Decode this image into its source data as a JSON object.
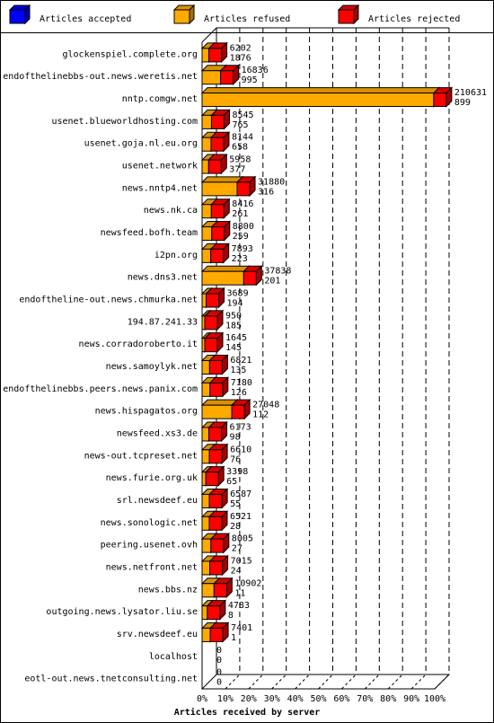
{
  "colors": {
    "accepted": "#0000ff",
    "refused": "#ffaa00",
    "rejected": "#ff0000",
    "background": "#ffffff",
    "frame": "#000000"
  },
  "chart_data": {
    "type": "bar",
    "orientation": "horizontal",
    "stacked": true,
    "xlabel": "Articles received by server",
    "xlim": [
      0,
      100
    ],
    "x_ticks": [
      "0%",
      "10%",
      "20%",
      "30%",
      "40%",
      "50%",
      "60%",
      "70%",
      "80%",
      "90%",
      "100%"
    ],
    "grid": true,
    "legend": "top",
    "series": [
      {
        "name": "Articles accepted",
        "color": "#0000ff"
      },
      {
        "name": "Articles refused",
        "color": "#ffaa00"
      },
      {
        "name": "Articles rejected",
        "color": "#ff0000"
      }
    ],
    "categories": [
      "glockenspiel.complete.org",
      "endofthelinebbs-out.news.weretis.net",
      "nntp.comgw.net",
      "usenet.blueworldhosting.com",
      "usenet.goja.nl.eu.org",
      "usenet.network",
      "news.nntp4.net",
      "news.nk.ca",
      "newsfeed.bofh.team",
      "i2pn.org",
      "news.dns3.net",
      "endoftheline-out.news.chmurka.net",
      "194.87.241.33",
      "news.corradoroberto.it",
      "news.samoylyk.net",
      "endofthelinebbs.peers.news.panix.com",
      "news.hispagatos.org",
      "newsfeed.xs3.de",
      "news-out.tcpreset.net",
      "news.furie.org.uk",
      "srl.newsdeef.eu",
      "news.sonologic.net",
      "peering.usenet.ovh",
      "news.netfront.net",
      "news.bbs.nz",
      "outgoing.news.lysator.liu.se",
      "srv.newsdeef.eu",
      "localhost",
      "eotl-out.news.tnetconsulting.net"
    ],
    "refused": [
      6202,
      16836,
      210631,
      8545,
      8144,
      5958,
      31880,
      8416,
      8800,
      7893,
      37838,
      3689,
      950,
      1645,
      6821,
      7180,
      27048,
      6173,
      6610,
      3398,
      6587,
      6521,
      8005,
      7015,
      10902,
      4783,
      7401,
      0,
      0
    ],
    "rejected": [
      1876,
      995,
      899,
      765,
      658,
      377,
      316,
      261,
      259,
      223,
      201,
      194,
      185,
      145,
      135,
      126,
      112,
      98,
      76,
      65,
      55,
      28,
      27,
      24,
      11,
      8,
      1,
      0,
      0
    ],
    "accepted": [
      0,
      0,
      0,
      0,
      0,
      0,
      0,
      0,
      0,
      0,
      0,
      0,
      0,
      0,
      0,
      0,
      0,
      0,
      0,
      0,
      0,
      0,
      0,
      0,
      0,
      0,
      0,
      0,
      0
    ]
  }
}
